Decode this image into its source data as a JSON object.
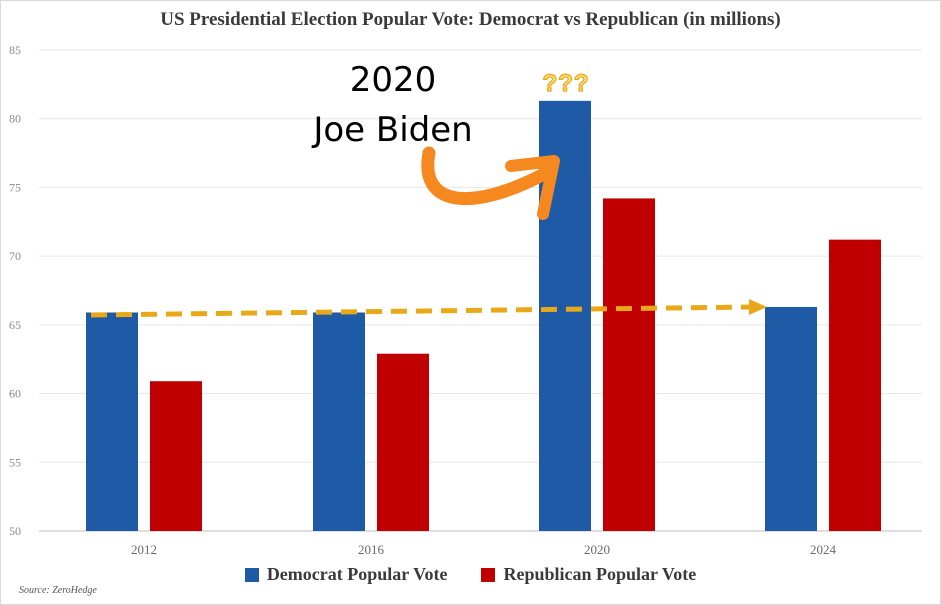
{
  "chart_data": {
    "type": "bar",
    "title": "US Presidential Election Popular Vote: Democrat vs Republican (in millions)",
    "categories": [
      "2012",
      "2016",
      "2020",
      "2024"
    ],
    "series": [
      {
        "name": "Democrat Popular Vote",
        "color": "#1f5aa6",
        "values": [
          65.9,
          65.9,
          81.3,
          66.3
        ]
      },
      {
        "name": "Republican Popular Vote",
        "color": "#c00000",
        "values": [
          60.9,
          62.9,
          74.2,
          71.2
        ]
      }
    ],
    "ylim": [
      50,
      85
    ],
    "yticks": [
      "50",
      "55",
      "60",
      "65",
      "70",
      "75",
      "80",
      "85"
    ],
    "grid": true,
    "legend_position": "bottom",
    "source": "Source: ZeroHedge",
    "annotations": {
      "year": "2020",
      "name": "Joe Biden",
      "question_marks": "???",
      "arrow_color": "#f5891f",
      "trend_line_color": "#e8a818"
    }
  }
}
